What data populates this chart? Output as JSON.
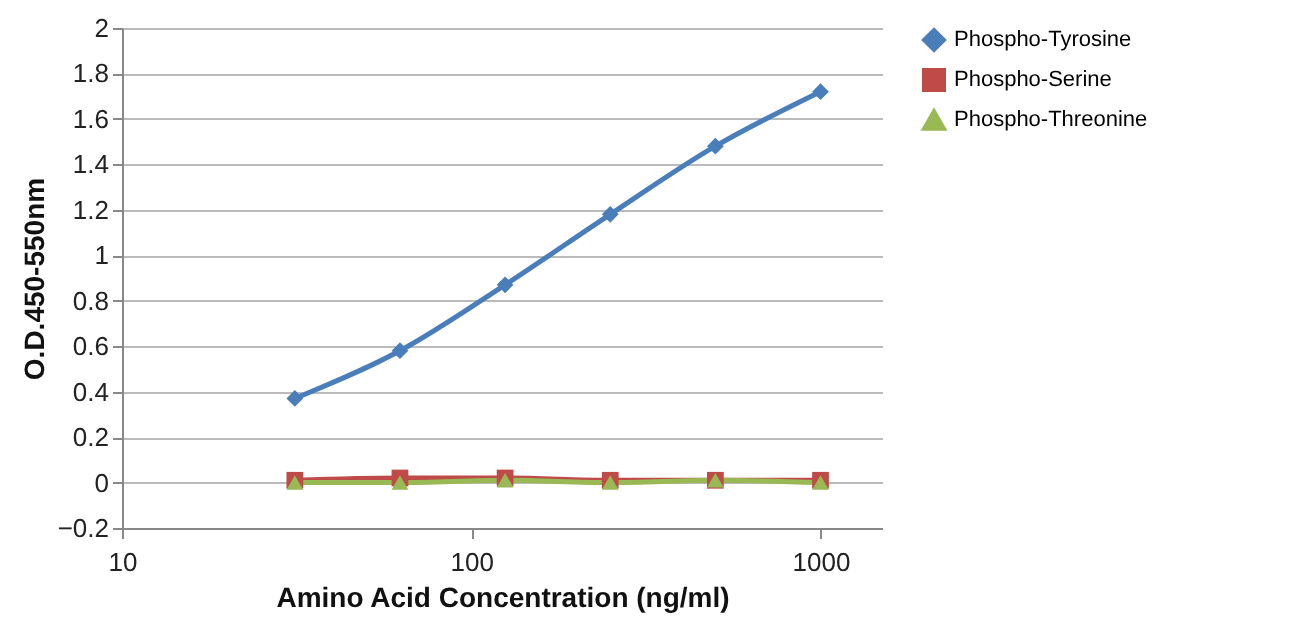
{
  "chart_data": {
    "type": "line",
    "xlabel": "Amino Acid Concentration (ng/ml)",
    "ylabel": "O.D.450-550nm",
    "x": [
      31.25,
      62.5,
      125,
      250,
      500,
      1000
    ],
    "series": [
      {
        "name": "Phospho-Tyrosine",
        "color": "#4a7ebb",
        "marker": "diamond",
        "values": [
          0.37,
          0.58,
          0.87,
          1.18,
          1.48,
          1.72
        ]
      },
      {
        "name": "Phospho-Serine",
        "color": "#be4b48",
        "marker": "square",
        "values": [
          0.01,
          0.02,
          0.02,
          0.01,
          0.01,
          0.01
        ]
      },
      {
        "name": "Phospho-Threonine",
        "color": "#98b954",
        "marker": "triangle",
        "values": [
          0,
          0,
          0.01,
          0,
          0.01,
          0
        ]
      }
    ],
    "log": "x",
    "xlim": [
      10,
      1500
    ],
    "xticks": [
      10,
      100,
      1000
    ],
    "ylim": [
      -0.2,
      2
    ],
    "yticks": [
      -0.2,
      0,
      0.2,
      0.4,
      0.6,
      0.8,
      1,
      1.2,
      1.4,
      1.6,
      1.8,
      2
    ],
    "grid": "y",
    "legend": "right"
  }
}
